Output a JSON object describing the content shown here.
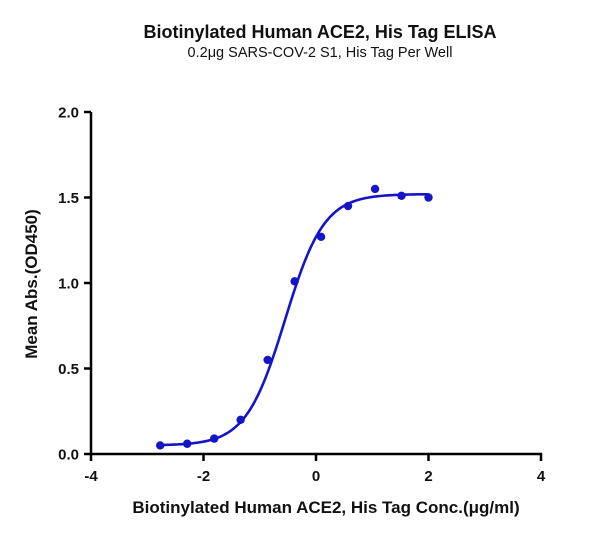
{
  "chart_data": {
    "type": "line",
    "title": "Biotinylated Human ACE2, His Tag ELISA",
    "subtitle": "0.2μg SARS-COV-2 S1, His Tag Per Well",
    "xlabel": "Biotinylated Human ACE2, His Tag Conc.(μg/ml)",
    "ylabel": "Mean Abs.(OD450)",
    "xlim": [
      -4,
      4
    ],
    "ylim": [
      0,
      2.0
    ],
    "xticks": [
      -4,
      -2,
      0,
      2,
      4
    ],
    "xtick_labels": [
      "-4",
      "-2",
      "0",
      "2",
      "4"
    ],
    "yticks": [
      0,
      0.5,
      1.0,
      1.5,
      2.0
    ],
    "ytick_labels": [
      "0.0",
      "0.5",
      "1.0",
      "1.5",
      "2.0"
    ],
    "grid": false,
    "legend": null,
    "series": [
      {
        "name": "Biotinylated Human ACE2, His Tag",
        "color": "#1515C8",
        "marker": "circle",
        "fit": "4PL sigmoidal",
        "x": [
          -2.77,
          -2.29,
          -1.81,
          -1.34,
          -0.86,
          -0.38,
          0.09,
          0.57,
          1.05,
          1.52,
          2.0
        ],
        "y": [
          0.05,
          0.06,
          0.09,
          0.2,
          0.55,
          1.01,
          1.27,
          1.45,
          1.55,
          1.51,
          1.5
        ]
      }
    ],
    "fit_params": {
      "bottom": 0.05,
      "top": 1.52,
      "logEC50": -0.55,
      "hill": 1.25
    }
  }
}
